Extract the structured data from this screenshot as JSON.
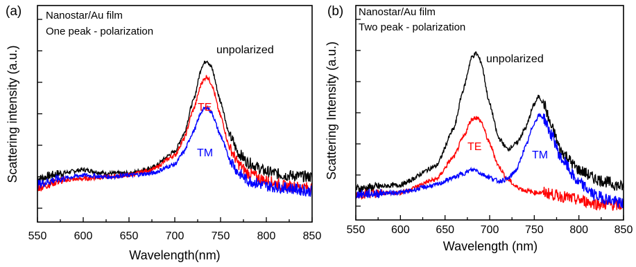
{
  "chart_data": [
    {
      "type": "line",
      "panel_label": "(a)",
      "annotations": [
        "Nanostar/Au film",
        "One peak - polarization"
      ],
      "xlabel": "Wavelength(nm)",
      "ylabel": "Scattering intensity (a.u.)",
      "xlim": [
        550,
        850
      ],
      "xticks": [
        550,
        600,
        650,
        700,
        750,
        800,
        850
      ],
      "ylim": [
        0,
        1
      ],
      "series": [
        {
          "name": "unpolarized",
          "color": "#000000",
          "x": [
            550,
            575,
            600,
            625,
            650,
            675,
            700,
            710,
            720,
            730,
            735,
            740,
            750,
            760,
            770,
            780,
            800,
            820,
            850
          ],
          "y": [
            0.16,
            0.19,
            0.21,
            0.19,
            0.19,
            0.22,
            0.31,
            0.41,
            0.59,
            0.79,
            0.82,
            0.78,
            0.59,
            0.4,
            0.3,
            0.25,
            0.2,
            0.18,
            0.17
          ]
        },
        {
          "name": "TE",
          "color": "#ff0000",
          "x": [
            550,
            575,
            600,
            625,
            650,
            675,
            700,
            710,
            720,
            730,
            735,
            740,
            750,
            760,
            770,
            780,
            800,
            820,
            850
          ],
          "y": [
            0.11,
            0.15,
            0.16,
            0.17,
            0.18,
            0.21,
            0.29,
            0.38,
            0.54,
            0.7,
            0.73,
            0.69,
            0.51,
            0.33,
            0.24,
            0.19,
            0.15,
            0.12,
            0.11
          ]
        },
        {
          "name": "TM",
          "color": "#0000ff",
          "x": [
            550,
            575,
            600,
            625,
            650,
            675,
            700,
            710,
            720,
            730,
            735,
            740,
            750,
            760,
            770,
            780,
            800,
            820,
            850
          ],
          "y": [
            0.13,
            0.16,
            0.18,
            0.17,
            0.18,
            0.19,
            0.24,
            0.31,
            0.42,
            0.54,
            0.56,
            0.53,
            0.4,
            0.27,
            0.19,
            0.15,
            0.12,
            0.11,
            0.09
          ]
        }
      ]
    },
    {
      "type": "line",
      "panel_label": "(b)",
      "annotations": [
        "Nanostar/Au film",
        "Two peak - polarization"
      ],
      "xlabel": "Wavelength (nm)",
      "ylabel": "Scattering Intensity (a.u.)",
      "xlim": [
        550,
        850
      ],
      "xticks": [
        550,
        600,
        650,
        700,
        750,
        800,
        850
      ],
      "ylim": [
        0,
        1
      ],
      "series": [
        {
          "name": "unpolarized",
          "color": "#000000",
          "x": [
            550,
            600,
            640,
            660,
            670,
            680,
            685,
            690,
            700,
            710,
            720,
            730,
            740,
            750,
            755,
            760,
            770,
            780,
            800,
            820,
            850
          ],
          "y": [
            0.1,
            0.12,
            0.22,
            0.42,
            0.62,
            0.8,
            0.82,
            0.78,
            0.55,
            0.37,
            0.31,
            0.34,
            0.42,
            0.55,
            0.59,
            0.56,
            0.42,
            0.3,
            0.2,
            0.15,
            0.11
          ]
        },
        {
          "name": "TE",
          "color": "#ff0000",
          "x": [
            550,
            600,
            640,
            660,
            670,
            680,
            685,
            690,
            700,
            710,
            720,
            730,
            740,
            750,
            760,
            780,
            800,
            820,
            850
          ],
          "y": [
            0.07,
            0.08,
            0.15,
            0.27,
            0.37,
            0.47,
            0.48,
            0.46,
            0.34,
            0.22,
            0.15,
            0.11,
            0.09,
            0.08,
            0.08,
            0.06,
            0.04,
            0.02,
            0.01
          ]
        },
        {
          "name": "TM",
          "color": "#0000ff",
          "x": [
            550,
            600,
            640,
            660,
            670,
            680,
            685,
            690,
            700,
            710,
            720,
            730,
            740,
            750,
            755,
            760,
            770,
            780,
            800,
            820,
            850
          ],
          "y": [
            0.07,
            0.08,
            0.12,
            0.16,
            0.18,
            0.2,
            0.2,
            0.18,
            0.16,
            0.14,
            0.15,
            0.2,
            0.32,
            0.45,
            0.49,
            0.48,
            0.38,
            0.26,
            0.13,
            0.06,
            0.02
          ]
        }
      ]
    }
  ]
}
